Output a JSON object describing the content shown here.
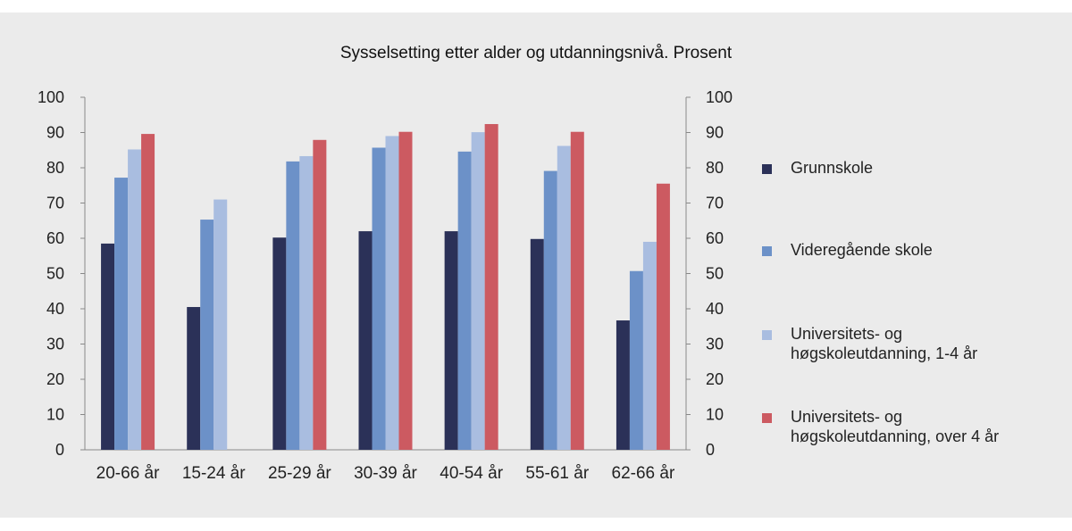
{
  "chart_data": {
    "type": "bar",
    "title": "Sysselsetting etter alder og utdanningsnivå. Prosent",
    "xlabel": "",
    "ylabel": "",
    "ylim": [
      0,
      100
    ],
    "yticks": [
      "0",
      "10",
      "20",
      "30",
      "40",
      "50",
      "60",
      "70",
      "80",
      "90",
      "100"
    ],
    "categories": [
      "20-66 år",
      "15-24 år",
      "25-29 år",
      "30-39 år",
      "40-54 år",
      "55-61 år",
      "62-66 år"
    ],
    "series": [
      {
        "name": "Grunnskole",
        "color": "#2b3158",
        "values": [
          58.5,
          40.5,
          60.2,
          62.0,
          62.0,
          59.8,
          36.7
        ]
      },
      {
        "name": "Videregående skole",
        "color": "#6c91c8",
        "values": [
          77.2,
          65.3,
          81.8,
          85.7,
          84.6,
          79.1,
          50.7
        ]
      },
      {
        "name": "Universitets- og høgskoleutdanning, 1-4 år",
        "color": "#a9bde0",
        "values": [
          85.2,
          71.0,
          83.3,
          89.0,
          90.1,
          86.2,
          59.0
        ]
      },
      {
        "name": "Universitets- og høgskoleutdanning, over 4 år",
        "color": "#cc5a61",
        "values": [
          89.6,
          null,
          87.9,
          90.2,
          92.4,
          90.2,
          75.5
        ]
      }
    ],
    "legend": {
      "position": "right",
      "items": [
        {
          "lines": [
            "Grunnskole"
          ]
        },
        {
          "lines": [
            "Videregående skole"
          ]
        },
        {
          "lines": [
            "Universitets- og",
            "høgskoleutdanning, 1-4 år"
          ]
        },
        {
          "lines": [
            "Universitets- og",
            "høgskoleutdanning, over 4 år"
          ]
        }
      ]
    },
    "grid": false
  }
}
